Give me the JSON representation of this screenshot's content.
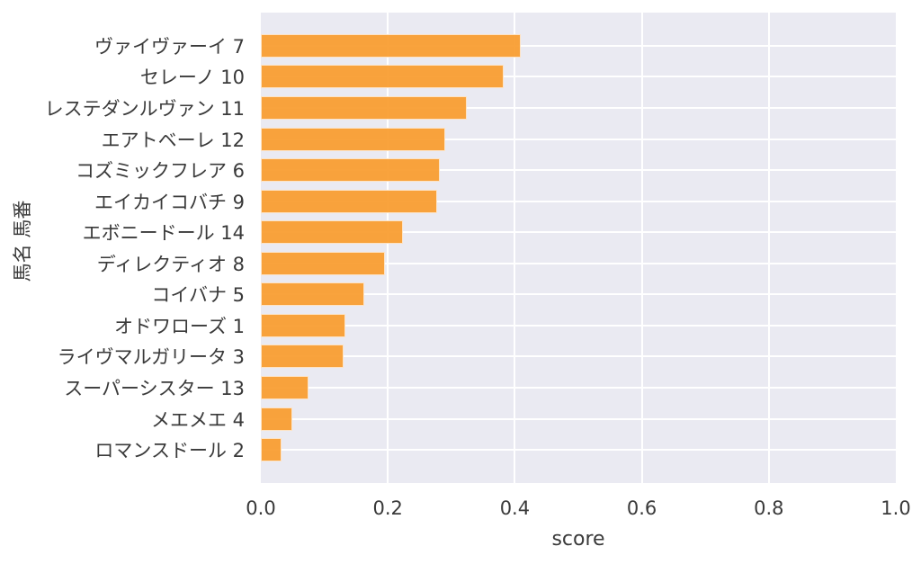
{
  "chart_data": {
    "type": "bar",
    "orientation": "horizontal",
    "title": "",
    "xlabel": "score",
    "ylabel": "馬名 馬番",
    "xlim": [
      0.0,
      1.0
    ],
    "grid": true,
    "legend": false,
    "xticks": [
      {
        "label": "0.0",
        "value": 0.0
      },
      {
        "label": "0.2",
        "value": 0.2
      },
      {
        "label": "0.4",
        "value": 0.4
      },
      {
        "label": "0.6",
        "value": 0.6
      },
      {
        "label": "0.8",
        "value": 0.8
      },
      {
        "label": "1.0",
        "value": 1.0
      }
    ],
    "categories": [
      "ヴァイヴァーイ 7",
      "セレーノ 10",
      "レステダンルヴァン 11",
      "エアトベーレ 12",
      "コズミックフレア 6",
      "エイカイコバチ 9",
      "エボニードール 14",
      "ディレクティオ 8",
      "コイバナ 5",
      "オドワローズ 1",
      "ライヴマルガリータ 3",
      "スーパーシスター 13",
      "メエメエ 4",
      "ロマンスドール 2"
    ],
    "values": [
      0.41,
      0.382,
      0.324,
      0.291,
      0.282,
      0.277,
      0.224,
      0.195,
      0.163,
      0.133,
      0.13,
      0.075,
      0.05,
      0.032
    ],
    "colors": {
      "bar": "#F99B2D",
      "plot_bg": "#EAEAF2",
      "grid": "#FFFFFF",
      "text": "#3A3A3A",
      "figure_bg": "#FFFFFF"
    }
  }
}
